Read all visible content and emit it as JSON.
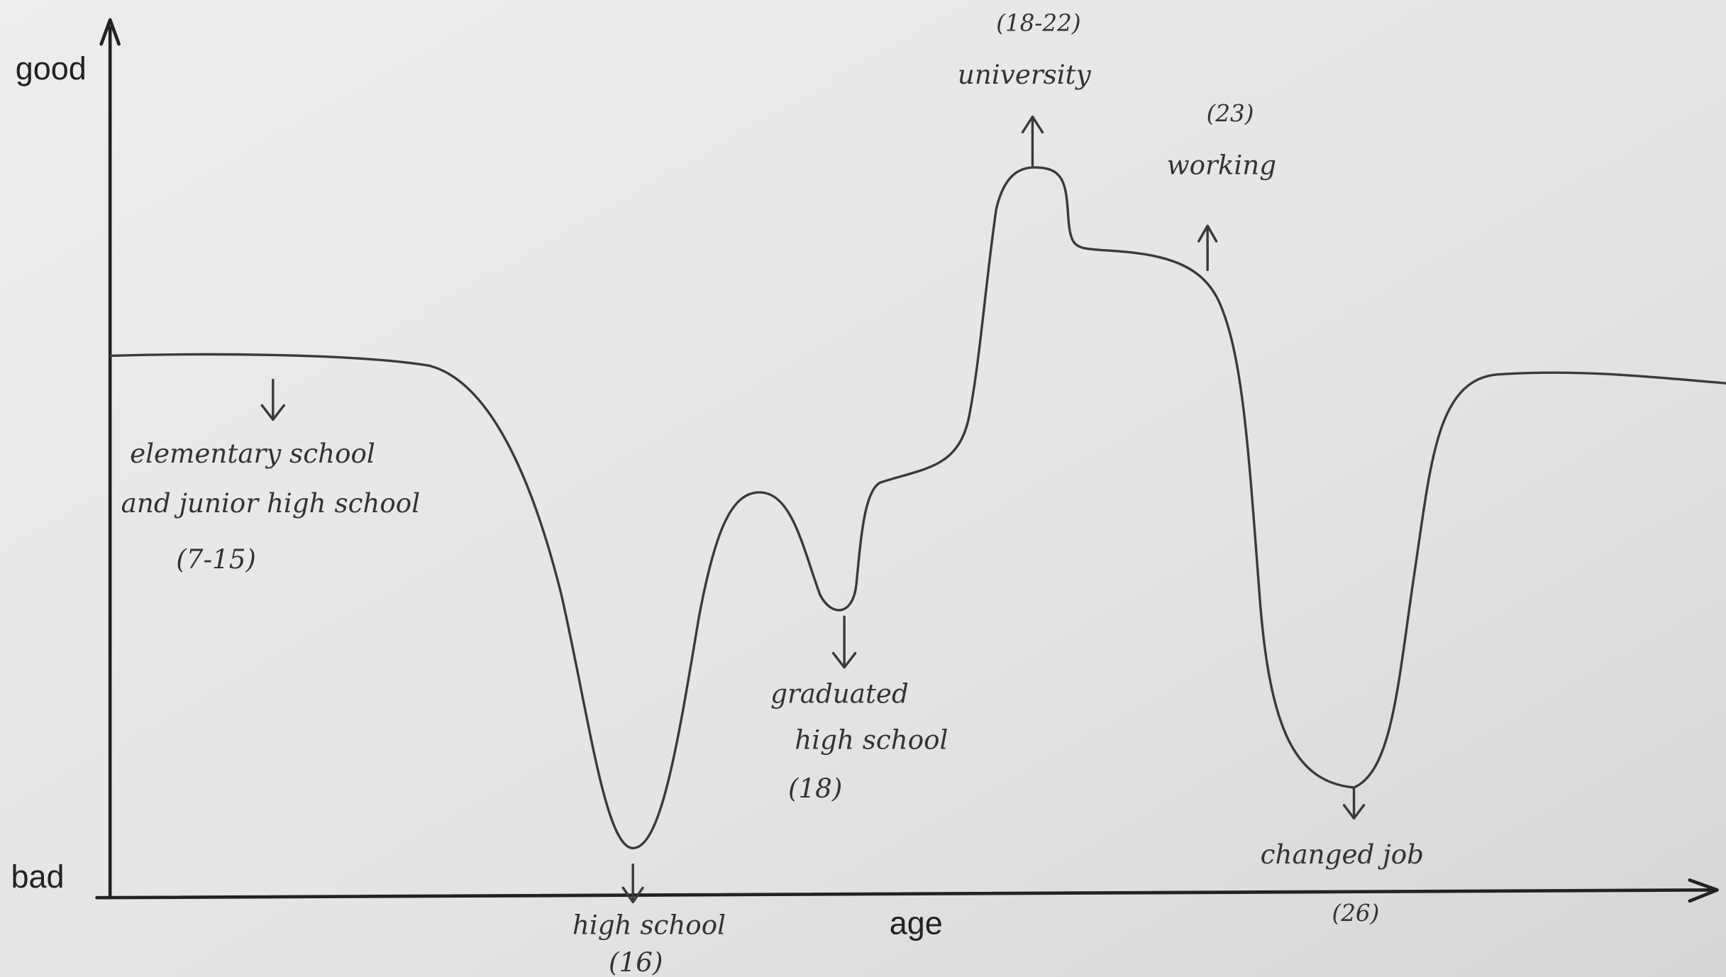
{
  "axes": {
    "y_top": "good",
    "y_bottom": "bad",
    "x": "age"
  },
  "annotations": [
    {
      "lines": [
        "elementary school",
        "and junior high school",
        "(7-15)"
      ]
    },
    {
      "lines": [
        "high school",
        "(16)"
      ]
    },
    {
      "lines": [
        "graduated",
        "high school",
        "(18)"
      ]
    },
    {
      "lines": [
        "(18-22)",
        "university"
      ]
    },
    {
      "lines": [
        "(23)",
        "working"
      ]
    },
    {
      "lines": [
        "changed job",
        "(26)"
      ]
    }
  ]
}
